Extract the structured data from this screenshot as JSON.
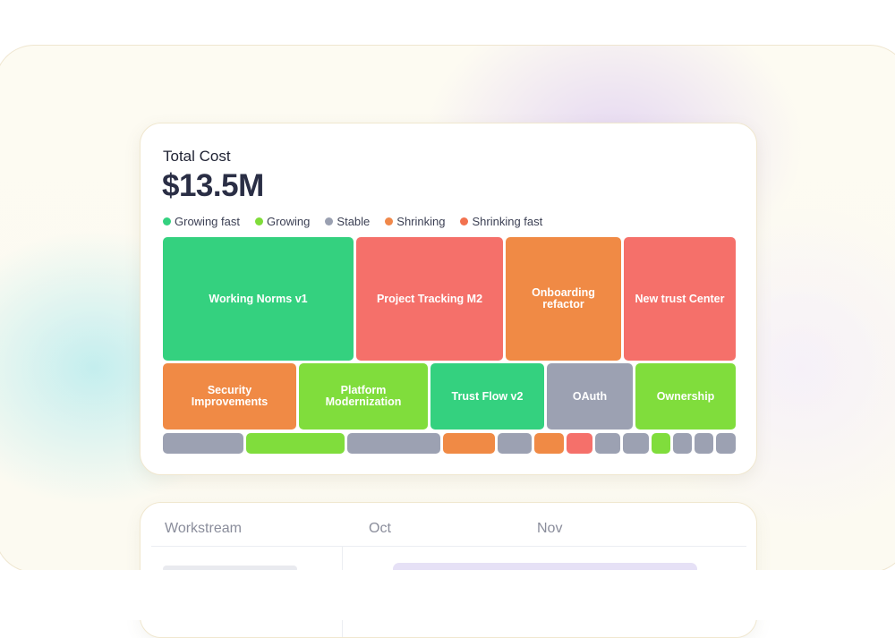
{
  "cost_card": {
    "title": "Total Cost",
    "value": "$13.5M",
    "legend": [
      {
        "label": "Growing fast",
        "color": "#34d17f"
      },
      {
        "label": "Growing",
        "color": "#7fdc3a"
      },
      {
        "label": "Stable",
        "color": "#9aa0b1"
      },
      {
        "label": "Shrinking",
        "color": "#f0884a"
      },
      {
        "label": "Shrinking fast",
        "color": "#f2724f"
      }
    ],
    "tiles": [
      {
        "label": "Working Norms v1",
        "status": "Growing fast"
      },
      {
        "label": "Project Tracking M2",
        "status": "Shrinking fast"
      },
      {
        "label": "Onboarding refactor",
        "status": "Shrinking"
      },
      {
        "label": "New trust Center",
        "status": "Shrinking fast"
      },
      {
        "label": "Security Improvements",
        "status": "Shrinking"
      },
      {
        "label": "Platform Modernization",
        "status": "Growing"
      },
      {
        "label": "Trust Flow v2",
        "status": "Growing fast"
      },
      {
        "label": "OAuth",
        "status": "Stable"
      },
      {
        "label": "Ownership",
        "status": "Growing"
      }
    ],
    "small_tiles": [
      "Stable",
      "Growing",
      "Stable",
      "Shrinking",
      "Stable",
      "Shrinking",
      "Shrinking fast",
      "Stable",
      "Stable",
      "Growing",
      "Stable",
      "Stable",
      "Stable"
    ],
    "tile_colors": {
      "Growing fast": "#34d17f",
      "Growing": "#80dd3c",
      "Stable": "#9ca1b2",
      "Shrinking": "#f08a45",
      "Shrinking fast": "#f5706a"
    }
  },
  "timeline_card": {
    "headers": {
      "workstream": "Workstream",
      "oct": "Oct",
      "nov": "Nov"
    }
  }
}
